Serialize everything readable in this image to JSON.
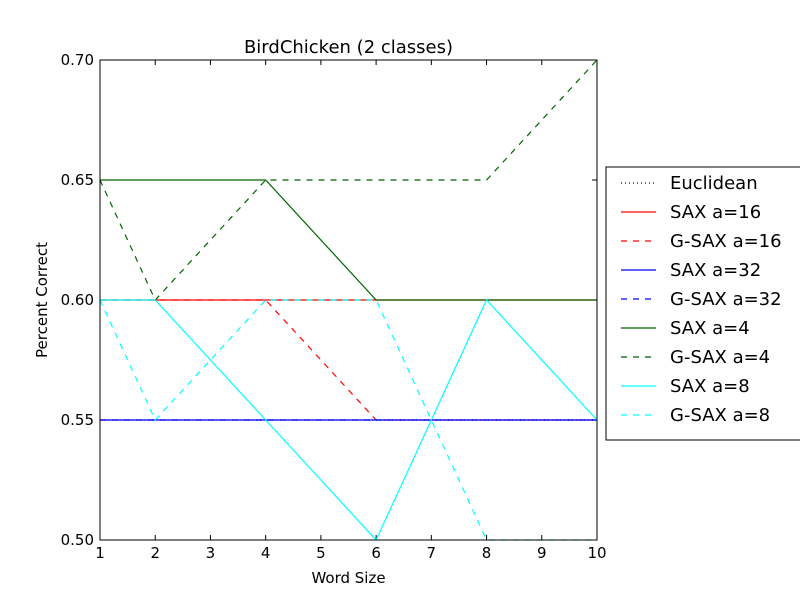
{
  "chart_data": {
    "type": "line",
    "title": "BirdChicken (2 classes)",
    "xlabel": "Word Size",
    "ylabel": "Percent Correct",
    "xlim": [
      1,
      10
    ],
    "ylim": [
      0.5,
      0.7
    ],
    "xticks": [
      1,
      2,
      3,
      4,
      5,
      6,
      7,
      8,
      9,
      10
    ],
    "xtick_labels": [
      "1",
      "2",
      "3",
      "4",
      "5",
      "6",
      "7",
      "8",
      "9",
      "10"
    ],
    "yticks": [
      0.5,
      0.55,
      0.6,
      0.65,
      0.7
    ],
    "ytick_labels": [
      "0.50",
      "0.55",
      "0.60",
      "0.65",
      "0.70"
    ],
    "grid": false,
    "legend_position": "right, outside plot",
    "series": [
      {
        "name": "Euclidean",
        "color": "#000000",
        "style": "dotted",
        "x": [
          1,
          2,
          4,
          6,
          8,
          10
        ],
        "y": [
          0.55,
          0.55,
          0.55,
          0.55,
          0.55,
          0.55
        ]
      },
      {
        "name": "SAX a=16",
        "color": "#ff0000",
        "style": "solid",
        "x": [
          1,
          2,
          4,
          6,
          8,
          10
        ],
        "y": [
          0.6,
          0.6,
          0.6,
          0.6,
          0.6,
          0.6
        ]
      },
      {
        "name": "G-SAX a=16",
        "color": "#ff0000",
        "style": "dashed",
        "x": [
          1,
          2,
          4,
          6,
          8,
          10
        ],
        "y": [
          0.6,
          0.6,
          0.6,
          0.55,
          0.55,
          0.55
        ]
      },
      {
        "name": "SAX a=32",
        "color": "#0000ff",
        "style": "solid",
        "x": [
          1,
          2,
          4,
          6,
          8,
          10
        ],
        "y": [
          0.55,
          0.55,
          0.55,
          0.55,
          0.55,
          0.55
        ]
      },
      {
        "name": "G-SAX a=32",
        "color": "#0000ff",
        "style": "dashed",
        "x": [
          1,
          2,
          4,
          6,
          8,
          10
        ],
        "y": [
          0.55,
          0.55,
          0.55,
          0.55,
          0.55,
          0.55
        ]
      },
      {
        "name": "SAX a=4",
        "color": "#006400",
        "style": "solid",
        "x": [
          1,
          2,
          4,
          6,
          8,
          10
        ],
        "y": [
          0.65,
          0.65,
          0.65,
          0.6,
          0.6,
          0.6
        ]
      },
      {
        "name": "G-SAX a=4",
        "color": "#006400",
        "style": "dashed",
        "x": [
          1,
          2,
          4,
          6,
          8,
          10
        ],
        "y": [
          0.65,
          0.6,
          0.65,
          0.65,
          0.65,
          0.7
        ]
      },
      {
        "name": "SAX a=8",
        "color": "#00ffff",
        "style": "solid",
        "x": [
          1,
          2,
          4,
          6,
          8,
          10
        ],
        "y": [
          0.6,
          0.6,
          0.55,
          0.5,
          0.6,
          0.55
        ]
      },
      {
        "name": "G-SAX a=8",
        "color": "#00ffff",
        "style": "dashed",
        "x": [
          1,
          2,
          4,
          6,
          8,
          10
        ],
        "y": [
          0.6,
          0.55,
          0.6,
          0.6,
          0.5,
          0.5
        ]
      }
    ]
  }
}
